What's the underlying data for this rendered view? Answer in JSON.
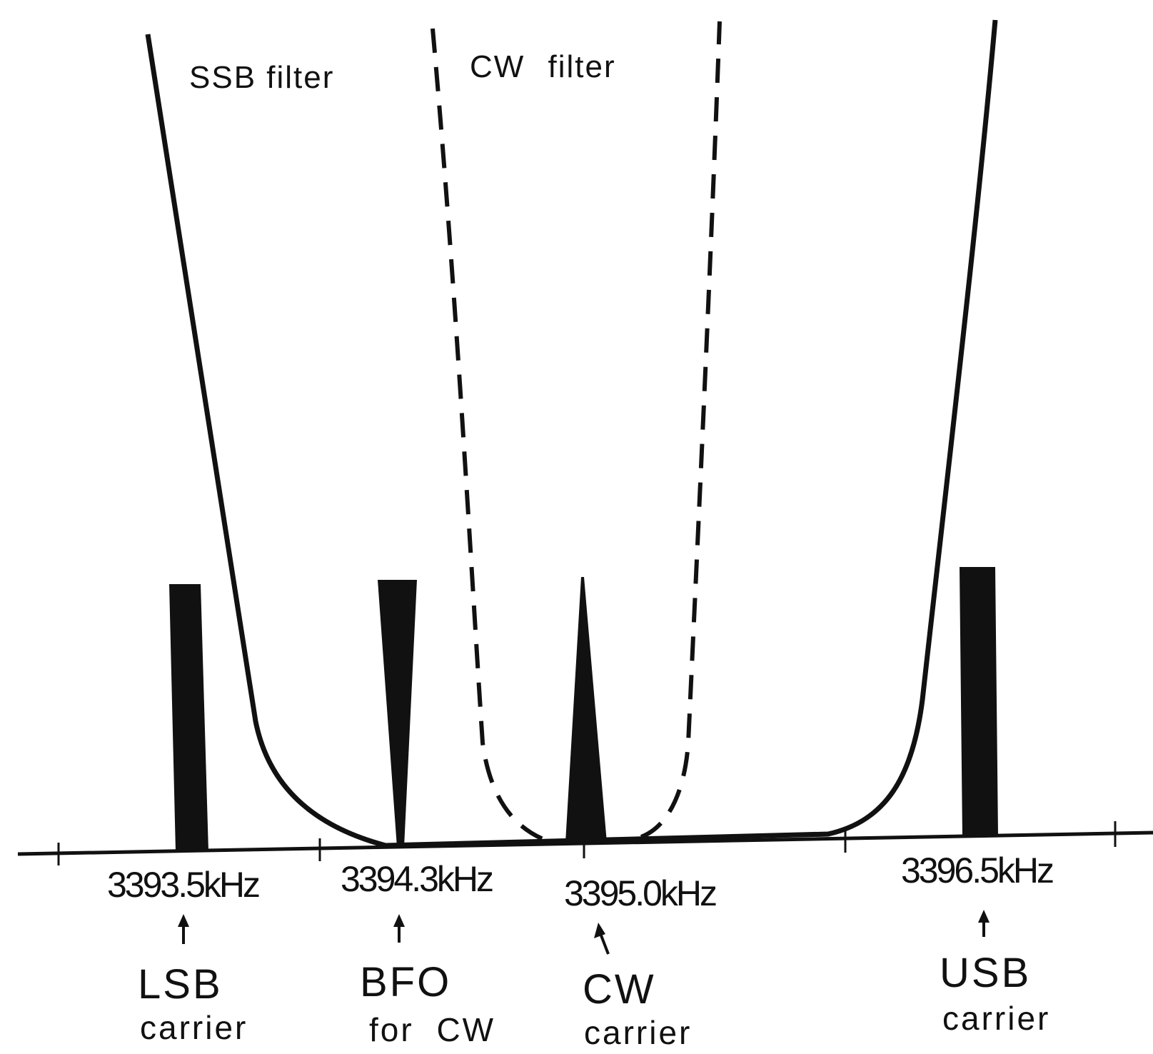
{
  "filters": {
    "ssb_label": "SSB filter",
    "cw_label": "CW filter"
  },
  "frequencies": {
    "lsb": "3393.5kHz",
    "bfo": "3394.3kHz",
    "cw": "3395.0kHz",
    "usb": "3396.5kHz"
  },
  "carriers": {
    "lsb": {
      "line1": "LSB",
      "line2": "carrier"
    },
    "bfo": {
      "line1": "BFO",
      "line2": "for CW"
    },
    "cw": {
      "line1": "CW",
      "line2": "carrier"
    },
    "usb": {
      "line1": "USB",
      "line2": "carrier"
    }
  },
  "colors": {
    "ink": "#111111",
    "background": "#ffffff"
  }
}
